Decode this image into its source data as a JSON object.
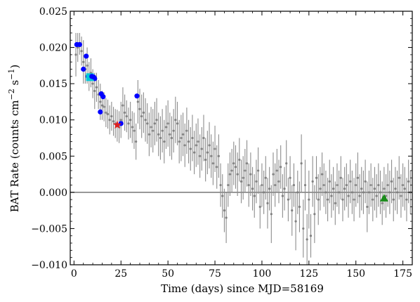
{
  "chart_data": {
    "type": "scatter",
    "title": "",
    "xlabel": "Time (days) since MJD=58169",
    "ylabel_main": "BAT Rate (counts cm",
    "ylabel_exp1": "−2",
    "ylabel_mid": " s",
    "ylabel_exp2": "−1",
    "ylabel_end": ")",
    "xlim": [
      -2,
      180
    ],
    "ylim": [
      -0.01,
      0.025
    ],
    "x_ticks": [
      0,
      25,
      50,
      75,
      100,
      125,
      150,
      175
    ],
    "x_tick_labels": [
      "0",
      "25",
      "50",
      "75",
      "100",
      "125",
      "150",
      "175"
    ],
    "y_ticks": [
      -0.01,
      -0.005,
      0.0,
      0.005,
      0.01,
      0.015,
      0.02,
      0.025
    ],
    "y_tick_labels": [
      "−0.010",
      "−0.005",
      "0.000",
      "0.005",
      "0.010",
      "0.015",
      "0.020",
      "0.025"
    ],
    "zero_line": 0.0,
    "colors": {
      "errorbar": "#8c8c8c",
      "bat_point": "#808080",
      "blue": "#0000ff",
      "cyan": "#00c8d8",
      "red": "#dd2020",
      "green": "#1a8c1a",
      "zero_line": "#808080"
    },
    "series": [
      {
        "kind": "errorbar",
        "points": [
          [
            1,
            0.019,
            0.003
          ],
          [
            2,
            0.02,
            0.002
          ],
          [
            3,
            0.0205,
            0.0015
          ],
          [
            4,
            0.0195,
            0.002
          ],
          [
            5,
            0.018,
            0.003
          ],
          [
            6,
            0.017,
            0.002
          ],
          [
            7,
            0.0175,
            0.0025
          ],
          [
            8,
            0.016,
            0.002
          ],
          [
            9,
            0.0165,
            0.002
          ],
          [
            10,
            0.015,
            0.002
          ],
          [
            11,
            0.014,
            0.0025
          ],
          [
            12,
            0.0145,
            0.002
          ],
          [
            13,
            0.0135,
            0.002
          ],
          [
            14,
            0.0125,
            0.0025
          ],
          [
            15,
            0.012,
            0.002
          ],
          [
            16,
            0.0118,
            0.002
          ],
          [
            17,
            0.011,
            0.002
          ],
          [
            18,
            0.0108,
            0.002
          ],
          [
            19,
            0.01,
            0.002
          ],
          [
            20,
            0.0105,
            0.002
          ],
          [
            21,
            0.0098,
            0.002
          ],
          [
            22,
            0.0095,
            0.002
          ],
          [
            23,
            0.0092,
            0.0022
          ],
          [
            24,
            0.009,
            0.0022
          ],
          [
            25,
            0.01,
            0.0025
          ],
          [
            26,
            0.012,
            0.0025
          ],
          [
            27,
            0.011,
            0.0025
          ],
          [
            28,
            0.0105,
            0.0022
          ],
          [
            29,
            0.0095,
            0.0022
          ],
          [
            30,
            0.01,
            0.0025
          ],
          [
            31,
            0.009,
            0.0022
          ],
          [
            32,
            0.0085,
            0.0025
          ],
          [
            33,
            0.007,
            0.0025
          ],
          [
            34,
            0.0125,
            0.003
          ],
          [
            35,
            0.0115,
            0.0028
          ],
          [
            36,
            0.0105,
            0.003
          ],
          [
            37,
            0.011,
            0.0028
          ],
          [
            38,
            0.01,
            0.003
          ],
          [
            39,
            0.0095,
            0.0028
          ],
          [
            40,
            0.008,
            0.003
          ],
          [
            41,
            0.009,
            0.0028
          ],
          [
            42,
            0.0085,
            0.003
          ],
          [
            43,
            0.0095,
            0.003
          ],
          [
            44,
            0.01,
            0.003
          ],
          [
            45,
            0.008,
            0.003
          ],
          [
            46,
            0.0075,
            0.003
          ],
          [
            47,
            0.0085,
            0.003
          ],
          [
            48,
            0.007,
            0.003
          ],
          [
            49,
            0.009,
            0.003
          ],
          [
            50,
            0.0095,
            0.0032
          ],
          [
            51,
            0.008,
            0.003
          ],
          [
            52,
            0.0075,
            0.003
          ],
          [
            53,
            0.0085,
            0.003
          ],
          [
            54,
            0.01,
            0.0032
          ],
          [
            55,
            0.0095,
            0.003
          ],
          [
            56,
            0.007,
            0.003
          ],
          [
            57,
            0.0075,
            0.0032
          ],
          [
            58,
            0.008,
            0.003
          ],
          [
            59,
            0.0065,
            0.003
          ],
          [
            60,
            0.0085,
            0.0032
          ],
          [
            61,
            0.007,
            0.003
          ],
          [
            62,
            0.006,
            0.003
          ],
          [
            63,
            0.0075,
            0.0032
          ],
          [
            64,
            0.0055,
            0.003
          ],
          [
            65,
            0.0065,
            0.003
          ],
          [
            66,
            0.007,
            0.0032
          ],
          [
            67,
            0.005,
            0.003
          ],
          [
            68,
            0.006,
            0.003
          ],
          [
            69,
            0.0075,
            0.0032
          ],
          [
            70,
            0.0045,
            0.003
          ],
          [
            71,
            0.0055,
            0.003
          ],
          [
            72,
            0.0065,
            0.0032
          ],
          [
            73,
            0.005,
            0.003
          ],
          [
            74,
            0.004,
            0.003
          ],
          [
            75,
            0.006,
            0.0032
          ],
          [
            76,
            0.0035,
            0.003
          ],
          [
            77,
            0.005,
            0.003
          ],
          [
            78,
            0.001,
            0.003
          ],
          [
            79,
            -0.0005,
            0.003
          ],
          [
            80,
            -0.0025,
            0.003
          ],
          [
            81,
            -0.0035,
            0.0035
          ],
          [
            82,
            0.001,
            0.003
          ],
          [
            83,
            0.0025,
            0.003
          ],
          [
            84,
            0.003,
            0.003
          ],
          [
            85,
            0.004,
            0.003
          ],
          [
            86,
            0.0035,
            0.003
          ],
          [
            87,
            0.0025,
            0.003
          ],
          [
            88,
            0.0045,
            0.003
          ],
          [
            89,
            0.0015,
            0.003
          ],
          [
            90,
            0.002,
            0.003
          ],
          [
            91,
            0.003,
            0.003
          ],
          [
            92,
            0.004,
            0.0032
          ],
          [
            93,
            0.001,
            0.003
          ],
          [
            94,
            0.0025,
            0.003
          ],
          [
            95,
            0.0005,
            0.003
          ],
          [
            96,
            -0.0005,
            0.003
          ],
          [
            97,
            0.0015,
            0.003
          ],
          [
            98,
            0.003,
            0.0032
          ],
          [
            99,
            -0.002,
            0.003
          ],
          [
            100,
            0.001,
            0.003
          ],
          [
            101,
            0.0,
            0.003
          ],
          [
            102,
            0.002,
            0.003
          ],
          [
            103,
            -0.0015,
            0.0035
          ],
          [
            104,
            0.0005,
            0.003
          ],
          [
            105,
            -0.003,
            0.004
          ],
          [
            106,
            0.0025,
            0.003
          ],
          [
            107,
            0.001,
            0.003
          ],
          [
            108,
            0.003,
            0.003
          ],
          [
            109,
            0.0015,
            0.003
          ],
          [
            110,
            0.0035,
            0.003
          ],
          [
            111,
            -0.0005,
            0.003
          ],
          [
            112,
            0.0005,
            0.003
          ],
          [
            113,
            0.004,
            0.0032
          ],
          [
            114,
            -0.001,
            0.003
          ],
          [
            115,
            0.002,
            0.003
          ],
          [
            116,
            -0.0025,
            0.0035
          ],
          [
            117,
            0.001,
            0.003
          ],
          [
            118,
            -0.004,
            0.004
          ],
          [
            119,
            0.0,
            0.003
          ],
          [
            120,
            -0.002,
            0.0035
          ],
          [
            121,
            0.004,
            0.004
          ],
          [
            122,
            -0.005,
            0.004
          ],
          [
            123,
            0.001,
            0.0035
          ],
          [
            124,
            -0.0065,
            0.0035
          ],
          [
            125,
            -0.001,
            0.004
          ],
          [
            126,
            -0.006,
            0.003
          ],
          [
            127,
            0.0015,
            0.0035
          ],
          [
            128,
            -0.003,
            0.004
          ],
          [
            129,
            0.002,
            0.003
          ],
          [
            130,
            -0.001,
            0.0035
          ],
          [
            131,
            0.0005,
            0.003
          ],
          [
            132,
            0.0025,
            0.003
          ],
          [
            133,
            0.001,
            0.003
          ],
          [
            134,
            0.0,
            0.003
          ],
          [
            135,
            -0.001,
            0.003
          ],
          [
            136,
            0.0015,
            0.003
          ],
          [
            137,
            -0.0005,
            0.003
          ],
          [
            138,
            0.0005,
            0.003
          ],
          [
            139,
            -0.0015,
            0.003
          ],
          [
            140,
            0.001,
            0.003
          ],
          [
            141,
            0.0,
            0.003
          ],
          [
            142,
            0.002,
            0.003
          ],
          [
            143,
            -0.001,
            0.003
          ],
          [
            144,
            0.0005,
            0.003
          ],
          [
            145,
            0.001,
            0.003
          ],
          [
            146,
            -0.0005,
            0.003
          ],
          [
            147,
            0.0015,
            0.003
          ],
          [
            148,
            0.0,
            0.003
          ],
          [
            149,
            -0.001,
            0.003
          ],
          [
            150,
            0.001,
            0.003
          ],
          [
            151,
            0.002,
            0.0035
          ],
          [
            152,
            -0.0005,
            0.003
          ],
          [
            153,
            0.0005,
            0.003
          ],
          [
            154,
            0.0,
            0.003
          ],
          [
            155,
            0.0015,
            0.003
          ],
          [
            156,
            -0.002,
            0.0035
          ],
          [
            157,
            0.0,
            0.003
          ],
          [
            158,
            0.001,
            0.003
          ],
          [
            159,
            -0.001,
            0.003
          ],
          [
            160,
            0.0005,
            0.003
          ],
          [
            161,
            -0.0005,
            0.003
          ],
          [
            162,
            0.001,
            0.003
          ],
          [
            163,
            0.0,
            0.003
          ],
          [
            164,
            -0.0015,
            0.003
          ],
          [
            165,
            0.0005,
            0.003
          ],
          [
            166,
            -0.0005,
            0.003
          ],
          [
            167,
            0.001,
            0.003
          ],
          [
            168,
            0.0,
            0.003
          ],
          [
            169,
            0.0015,
            0.003
          ],
          [
            170,
            -0.001,
            0.003
          ],
          [
            171,
            0.0005,
            0.003
          ],
          [
            172,
            0.0,
            0.003
          ],
          [
            173,
            0.002,
            0.003
          ],
          [
            174,
            -0.0005,
            0.003
          ],
          [
            175,
            0.001,
            0.003
          ],
          [
            176,
            0.0005,
            0.003
          ],
          [
            177,
            -0.001,
            0.003
          ],
          [
            178,
            0.0015,
            0.003
          ],
          [
            179,
            0.0,
            0.003
          ]
        ]
      },
      {
        "kind": "blue-dots",
        "points": [
          [
            1.5,
            0.0204
          ],
          [
            3.0,
            0.0204
          ],
          [
            6.5,
            0.0188
          ],
          [
            5.0,
            0.017
          ],
          [
            7.5,
            0.016
          ],
          [
            9.5,
            0.016
          ],
          [
            10.5,
            0.0159
          ],
          [
            11.0,
            0.0157
          ],
          [
            14.5,
            0.0136
          ],
          [
            15.5,
            0.0132
          ],
          [
            14.0,
            0.0111
          ],
          [
            25.0,
            0.0095
          ],
          [
            33.5,
            0.0133
          ]
        ]
      },
      {
        "kind": "cyan-square",
        "points": [
          [
            8.5,
            0.0159
          ]
        ]
      },
      {
        "kind": "red-star",
        "points": [
          [
            23.0,
            0.0093
          ]
        ]
      },
      {
        "kind": "green-triangle",
        "points": [
          [
            165.0,
            -0.0008
          ]
        ]
      }
    ]
  }
}
